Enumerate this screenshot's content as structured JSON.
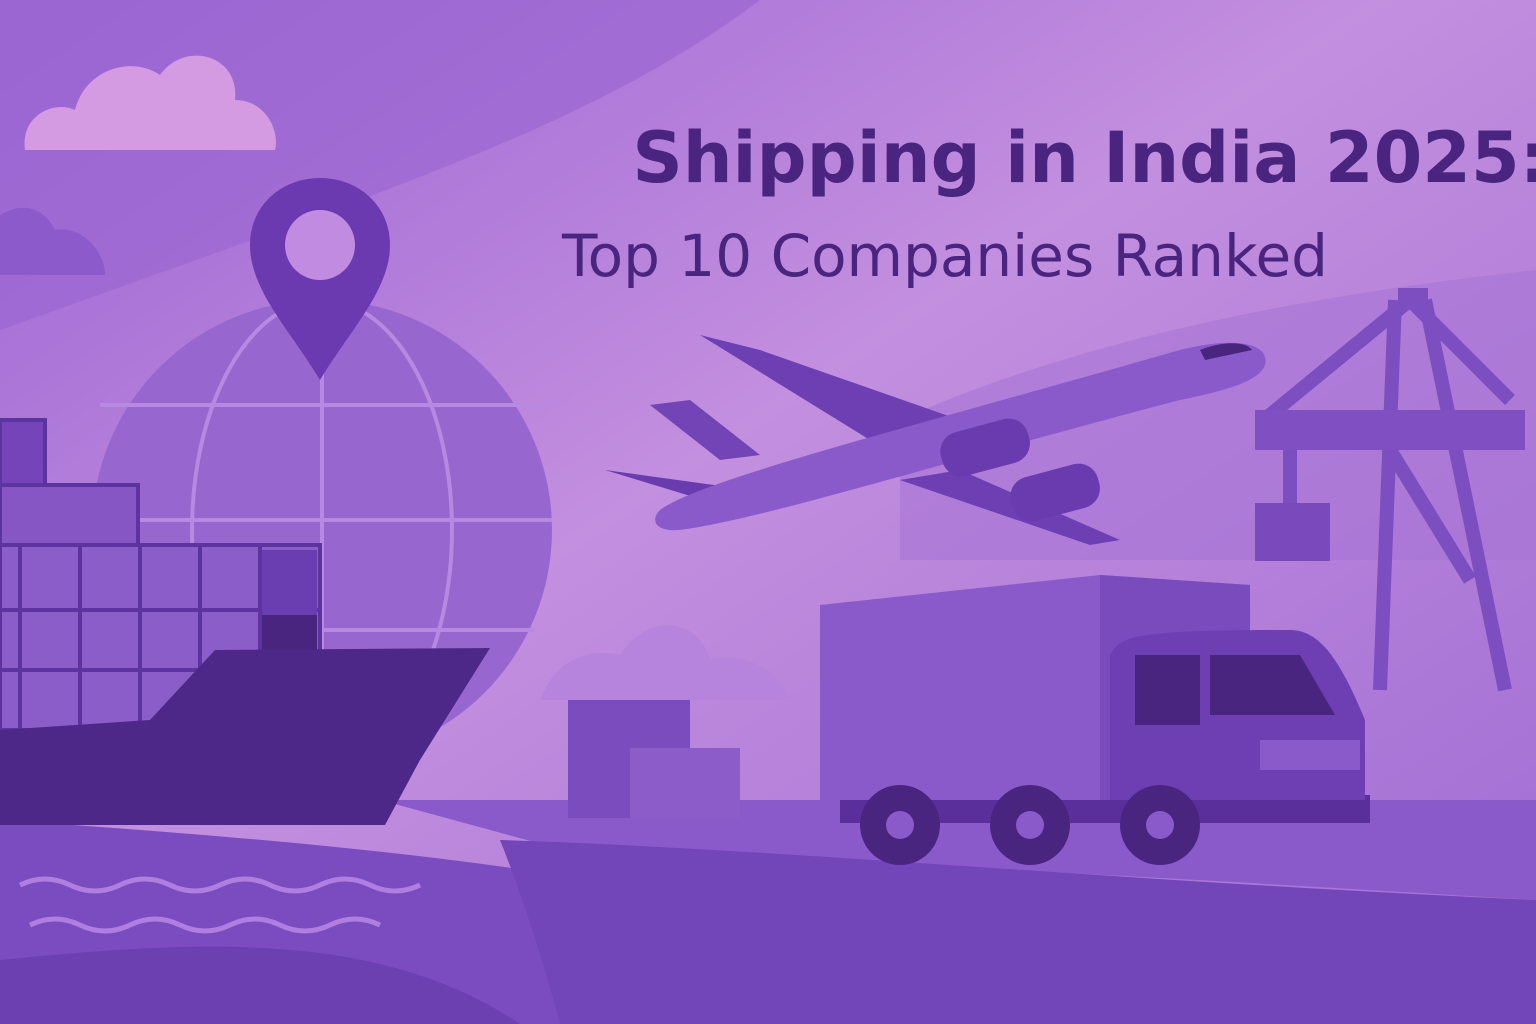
{
  "title": "Shipping in India 2025:",
  "subtitle": "Top 10 Companies Ranked"
}
